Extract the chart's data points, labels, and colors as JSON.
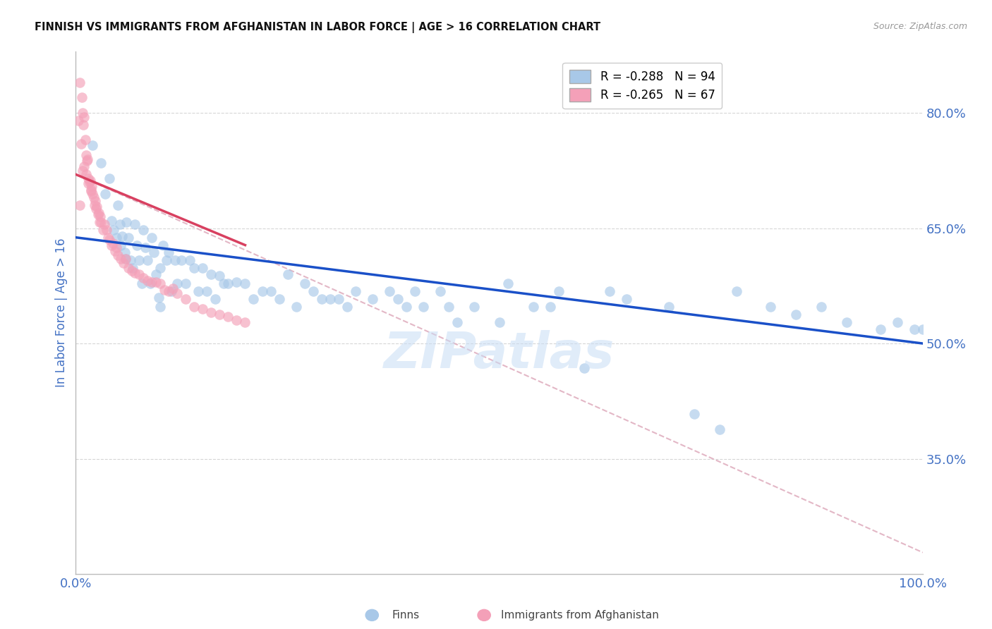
{
  "title": "FINNISH VS IMMIGRANTS FROM AFGHANISTAN IN LABOR FORCE | AGE > 16 CORRELATION CHART",
  "source": "Source: ZipAtlas.com",
  "ylabel": "In Labor Force | Age > 16",
  "xlim": [
    0.0,
    1.0
  ],
  "ylim": [
    0.2,
    0.88
  ],
  "yticks": [
    0.35,
    0.5,
    0.65,
    0.8
  ],
  "ytick_labels": [
    "35.0%",
    "50.0%",
    "65.0%",
    "80.0%"
  ],
  "legend_entry1": "R = -0.288   N = 94",
  "legend_entry2": "R = -0.265   N = 67",
  "finns_label": "Finns",
  "immigrants_label": "Immigrants from Afghanistan",
  "blue_color": "#a8c8e8",
  "pink_color": "#f4a0b8",
  "trendline_blue_color": "#1a50c8",
  "trendline_pink_color": "#d84060",
  "trendline_dashed_color": "#e0b0c0",
  "watermark": "ZIPatlas",
  "tick_label_color": "#4472c4",
  "grid_color": "#cccccc",
  "background_color": "#ffffff",
  "finns_scatter_x": [
    0.02,
    0.03,
    0.035,
    0.04,
    0.042,
    0.045,
    0.05,
    0.052,
    0.055,
    0.058,
    0.06,
    0.062,
    0.065,
    0.067,
    0.07,
    0.072,
    0.075,
    0.078,
    0.08,
    0.082,
    0.085,
    0.088,
    0.09,
    0.092,
    0.095,
    0.098,
    0.1,
    0.103,
    0.107,
    0.11,
    0.113,
    0.117,
    0.12,
    0.125,
    0.13,
    0.135,
    0.14,
    0.145,
    0.15,
    0.155,
    0.16,
    0.165,
    0.17,
    0.175,
    0.18,
    0.19,
    0.2,
    0.21,
    0.22,
    0.23,
    0.24,
    0.25,
    0.26,
    0.27,
    0.28,
    0.29,
    0.3,
    0.31,
    0.32,
    0.33,
    0.35,
    0.37,
    0.38,
    0.39,
    0.4,
    0.41,
    0.43,
    0.44,
    0.45,
    0.47,
    0.5,
    0.51,
    0.54,
    0.56,
    0.57,
    0.6,
    0.63,
    0.65,
    0.7,
    0.73,
    0.76,
    0.78,
    0.82,
    0.85,
    0.88,
    0.91,
    0.95,
    0.97,
    0.99,
    1.0,
    0.048,
    0.053,
    0.059,
    0.1
  ],
  "finns_scatter_y": [
    0.758,
    0.735,
    0.695,
    0.715,
    0.66,
    0.648,
    0.68,
    0.655,
    0.64,
    0.618,
    0.658,
    0.638,
    0.608,
    0.598,
    0.655,
    0.628,
    0.608,
    0.578,
    0.648,
    0.625,
    0.608,
    0.578,
    0.638,
    0.618,
    0.59,
    0.56,
    0.548,
    0.628,
    0.608,
    0.618,
    0.568,
    0.608,
    0.578,
    0.608,
    0.578,
    0.608,
    0.598,
    0.568,
    0.598,
    0.568,
    0.59,
    0.558,
    0.588,
    0.578,
    0.578,
    0.58,
    0.578,
    0.558,
    0.568,
    0.568,
    0.558,
    0.59,
    0.548,
    0.578,
    0.568,
    0.558,
    0.558,
    0.558,
    0.548,
    0.568,
    0.558,
    0.568,
    0.558,
    0.548,
    0.568,
    0.548,
    0.568,
    0.548,
    0.528,
    0.548,
    0.528,
    0.578,
    0.548,
    0.548,
    0.568,
    0.468,
    0.568,
    0.558,
    0.548,
    0.408,
    0.388,
    0.568,
    0.548,
    0.538,
    0.548,
    0.528,
    0.518,
    0.528,
    0.518,
    0.518,
    0.638,
    0.628,
    0.61,
    0.598
  ],
  "immigrants_scatter_x": [
    0.003,
    0.005,
    0.006,
    0.007,
    0.008,
    0.009,
    0.01,
    0.011,
    0.012,
    0.013,
    0.014,
    0.015,
    0.016,
    0.017,
    0.018,
    0.019,
    0.02,
    0.021,
    0.022,
    0.023,
    0.024,
    0.025,
    0.026,
    0.027,
    0.028,
    0.029,
    0.03,
    0.032,
    0.034,
    0.036,
    0.038,
    0.04,
    0.042,
    0.044,
    0.046,
    0.048,
    0.05,
    0.053,
    0.056,
    0.059,
    0.062,
    0.066,
    0.07,
    0.075,
    0.08,
    0.085,
    0.09,
    0.095,
    0.1,
    0.105,
    0.11,
    0.115,
    0.12,
    0.13,
    0.14,
    0.15,
    0.16,
    0.17,
    0.18,
    0.19,
    0.2,
    0.005,
    0.008,
    0.01,
    0.012,
    0.015,
    0.018
  ],
  "immigrants_scatter_y": [
    0.79,
    0.84,
    0.76,
    0.82,
    0.8,
    0.785,
    0.795,
    0.765,
    0.745,
    0.738,
    0.74,
    0.715,
    0.71,
    0.712,
    0.698,
    0.705,
    0.695,
    0.69,
    0.68,
    0.685,
    0.675,
    0.678,
    0.668,
    0.67,
    0.658,
    0.665,
    0.658,
    0.648,
    0.655,
    0.648,
    0.638,
    0.635,
    0.628,
    0.63,
    0.62,
    0.625,
    0.615,
    0.61,
    0.605,
    0.61,
    0.598,
    0.595,
    0.592,
    0.59,
    0.585,
    0.582,
    0.58,
    0.58,
    0.578,
    0.57,
    0.568,
    0.572,
    0.565,
    0.558,
    0.548,
    0.545,
    0.54,
    0.538,
    0.535,
    0.53,
    0.528,
    0.68,
    0.725,
    0.73,
    0.72,
    0.708,
    0.7
  ],
  "blue_trendline_x": [
    0.0,
    1.0
  ],
  "blue_trendline_y": [
    0.638,
    0.5
  ],
  "pink_trendline_x": [
    0.0,
    0.2
  ],
  "pink_trendline_y": [
    0.72,
    0.628
  ],
  "dashed_trendline_x": [
    0.0,
    1.0
  ],
  "dashed_trendline_y": [
    0.72,
    0.228
  ]
}
